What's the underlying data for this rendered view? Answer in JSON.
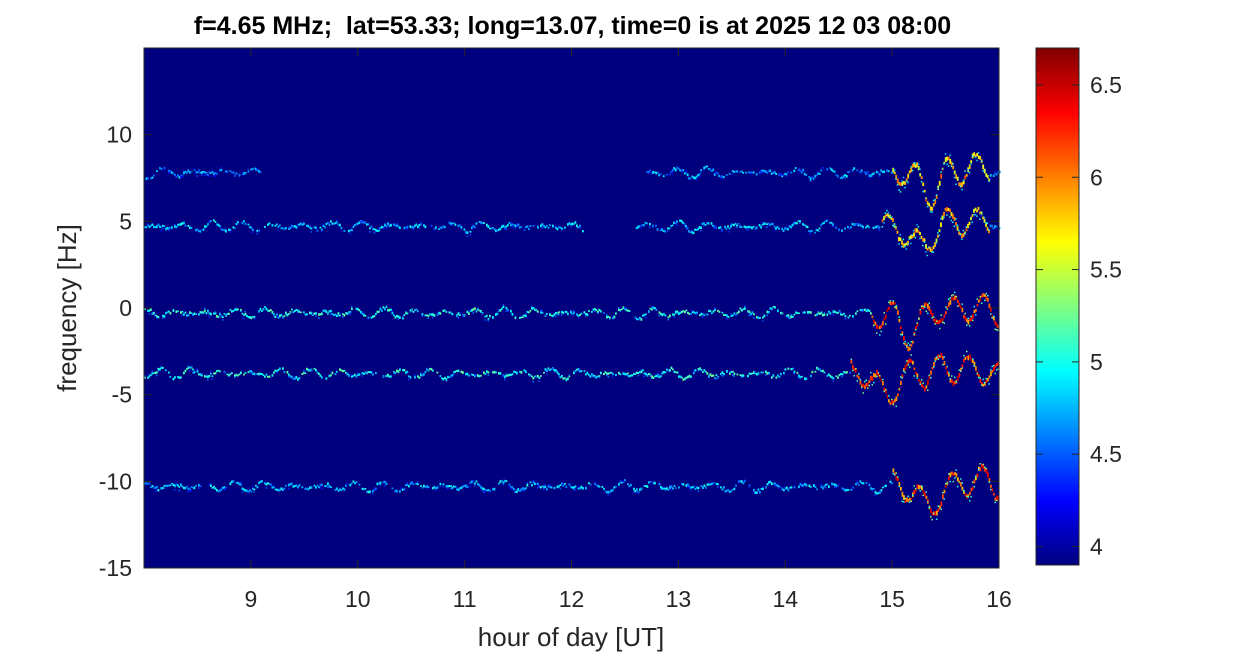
{
  "chart_data": {
    "type": "heatmap",
    "title": "f=4.65 MHz;  lat=53.33; long=13.07, time=0 is at 2025 12 03 08:00",
    "xlabel": "hour of day [UT]",
    "ylabel": "frequency [Hz]",
    "xlim": [
      8,
      16
    ],
    "ylim": [
      -15,
      15
    ],
    "x_ticks": [
      9,
      10,
      11,
      12,
      13,
      14,
      15,
      16
    ],
    "y_ticks": [
      -15,
      -10,
      -5,
      0,
      5,
      10
    ],
    "colorbar": {
      "clim": [
        3.9,
        6.7
      ],
      "ticks": [
        "4",
        "4.5",
        "5",
        "5.5",
        "6",
        "6.5"
      ],
      "tick_values": [
        4,
        4.5,
        5,
        5.5,
        6,
        6.5
      ],
      "colormap": "jet"
    },
    "background_color": "#00007f",
    "traces": [
      {
        "center_hz": 7.8,
        "x_ranges": [
          [
            8.0,
            9.1
          ],
          [
            12.7,
            16.0
          ]
        ],
        "baseline_intensity": 4.6,
        "peak_intensity": 6.2,
        "peak_x": [
          15.0,
          15.9
        ]
      },
      {
        "center_hz": 4.7,
        "x_ranges": [
          [
            8.0,
            12.1
          ],
          [
            12.6,
            16.0
          ]
        ],
        "baseline_intensity": 4.7,
        "peak_intensity": 6.1,
        "peak_x": [
          14.9,
          15.9
        ]
      },
      {
        "center_hz": -0.3,
        "x_ranges": [
          [
            8.0,
            16.0
          ]
        ],
        "baseline_intensity": 4.9,
        "peak_intensity": 6.6,
        "peak_x": [
          14.8,
          16.0
        ]
      },
      {
        "center_hz": -3.8,
        "x_ranges": [
          [
            8.0,
            16.0
          ]
        ],
        "baseline_intensity": 4.9,
        "peak_intensity": 6.6,
        "peak_x": [
          14.6,
          16.0
        ]
      },
      {
        "center_hz": -10.3,
        "x_ranges": [
          [
            8.0,
            16.0
          ]
        ],
        "baseline_intensity": 4.7,
        "peak_intensity": 6.6,
        "peak_x": [
          15.0,
          16.0
        ]
      }
    ]
  }
}
